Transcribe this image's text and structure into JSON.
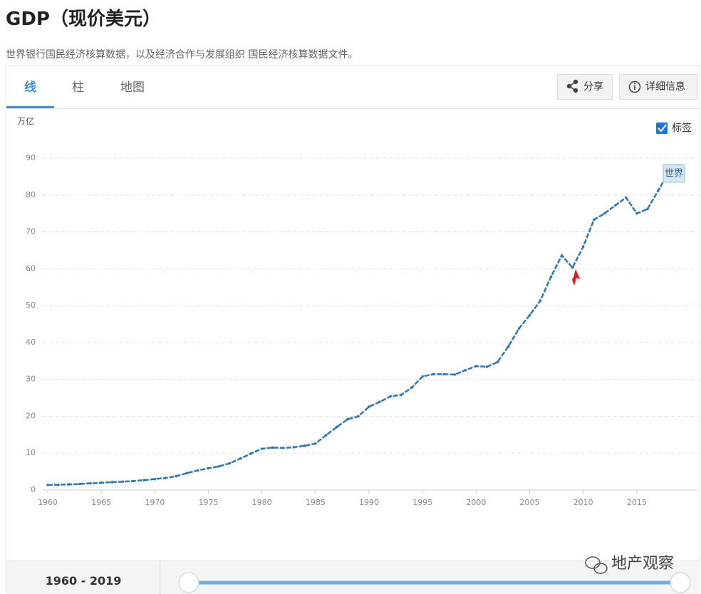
{
  "header": {
    "title": "GDP（现价美元）",
    "subtitle": "世界银行国民经济核算数据，以及经济合作与发展组织 国民经济核算数据文件。"
  },
  "tabs": [
    "线",
    "柱",
    "地图"
  ],
  "buttons": [
    "分享",
    "详细信息"
  ],
  "checkbox": {
    "label": "标签",
    "checked": true
  },
  "chart_data": {
    "type": "line",
    "y_axis_label": "万亿",
    "x": [
      1960,
      1961,
      1962,
      1963,
      1964,
      1965,
      1966,
      1967,
      1968,
      1969,
      1970,
      1971,
      1972,
      1973,
      1974,
      1975,
      1976,
      1977,
      1978,
      1979,
      1980,
      1981,
      1982,
      1983,
      1984,
      1985,
      1986,
      1987,
      1988,
      1989,
      1990,
      1991,
      1992,
      1993,
      1994,
      1995,
      1996,
      1997,
      1998,
      1999,
      2000,
      2001,
      2002,
      2003,
      2004,
      2005,
      2006,
      2007,
      2008,
      2009,
      2010,
      2011,
      2012,
      2013,
      2014,
      2015,
      2016,
      2017,
      2018,
      2019
    ],
    "series": [
      {
        "name": "世界",
        "color": "#2e77b0",
        "values": [
          1.37,
          1.42,
          1.53,
          1.64,
          1.8,
          1.96,
          2.13,
          2.26,
          2.44,
          2.69,
          2.96,
          3.27,
          3.77,
          4.59,
          5.3,
          5.9,
          6.41,
          7.26,
          8.54,
          9.93,
          11.2,
          11.5,
          11.4,
          11.6,
          12.0,
          12.6,
          14.9,
          17.1,
          19.2,
          20.0,
          22.6,
          23.9,
          25.4,
          25.8,
          27.8,
          30.8,
          31.4,
          31.4,
          31.3,
          32.5,
          33.6,
          33.4,
          34.7,
          38.9,
          43.8,
          47.4,
          51.4,
          57.9,
          63.6,
          60.3,
          66.0,
          73.3,
          75.0,
          77.2,
          79.3,
          75.0,
          76.2,
          81.2,
          86.3,
          87.7
        ]
      }
    ],
    "xlim": [
      1960,
      2019
    ],
    "xticks": [
      1960,
      1965,
      1970,
      1975,
      1980,
      1985,
      1990,
      1995,
      2000,
      2005,
      2010,
      2015
    ],
    "ylim": [
      0,
      90
    ],
    "yticks": [
      0,
      10,
      20,
      30,
      40,
      50,
      60,
      70,
      80,
      90
    ],
    "grid": true
  },
  "range": {
    "label": "1960 - 2019"
  },
  "watermark": "地产观察"
}
